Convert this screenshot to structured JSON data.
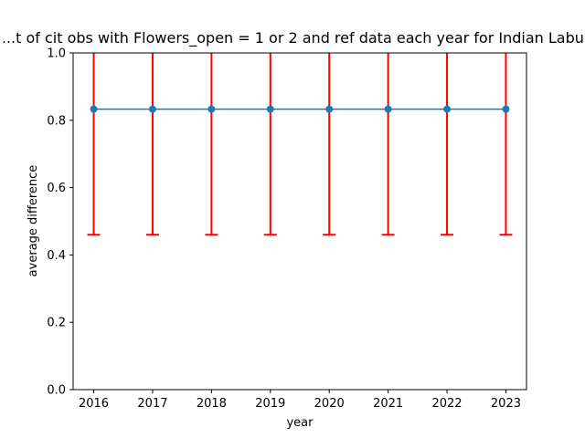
{
  "chart_data": {
    "type": "line",
    "title": "...t of cit obs with Flowers_open = 1 or 2 and ref data each year for Indian Labu...",
    "xlabel": "year",
    "ylabel": "average difference",
    "x": [
      2016,
      2017,
      2018,
      2019,
      2020,
      2021,
      2022,
      2023
    ],
    "x_tick_labels": [
      "2016",
      "2017",
      "2018",
      "2019",
      "2020",
      "2021",
      "2022",
      "2023"
    ],
    "y_tick_labels": [
      "0.0",
      "0.2",
      "0.4",
      "0.6",
      "0.8",
      "1.0"
    ],
    "ylim": [
      0.0,
      1.0
    ],
    "xlim": [
      2015.65,
      2023.35
    ],
    "series": [
      {
        "values": [
          0.833,
          0.833,
          0.833,
          0.833,
          0.833,
          0.833,
          0.833,
          0.833
        ],
        "error_lower": [
          0.46,
          0.46,
          0.46,
          0.46,
          0.46,
          0.46,
          0.46,
          0.46
        ],
        "error_upper": [
          1.2,
          1.2,
          1.2,
          1.2,
          1.2,
          1.2,
          1.2,
          1.2
        ],
        "color": "#1f77b4",
        "error_color": "#ff0000",
        "marker": "circle"
      }
    ],
    "grid": false,
    "legend": "none"
  }
}
